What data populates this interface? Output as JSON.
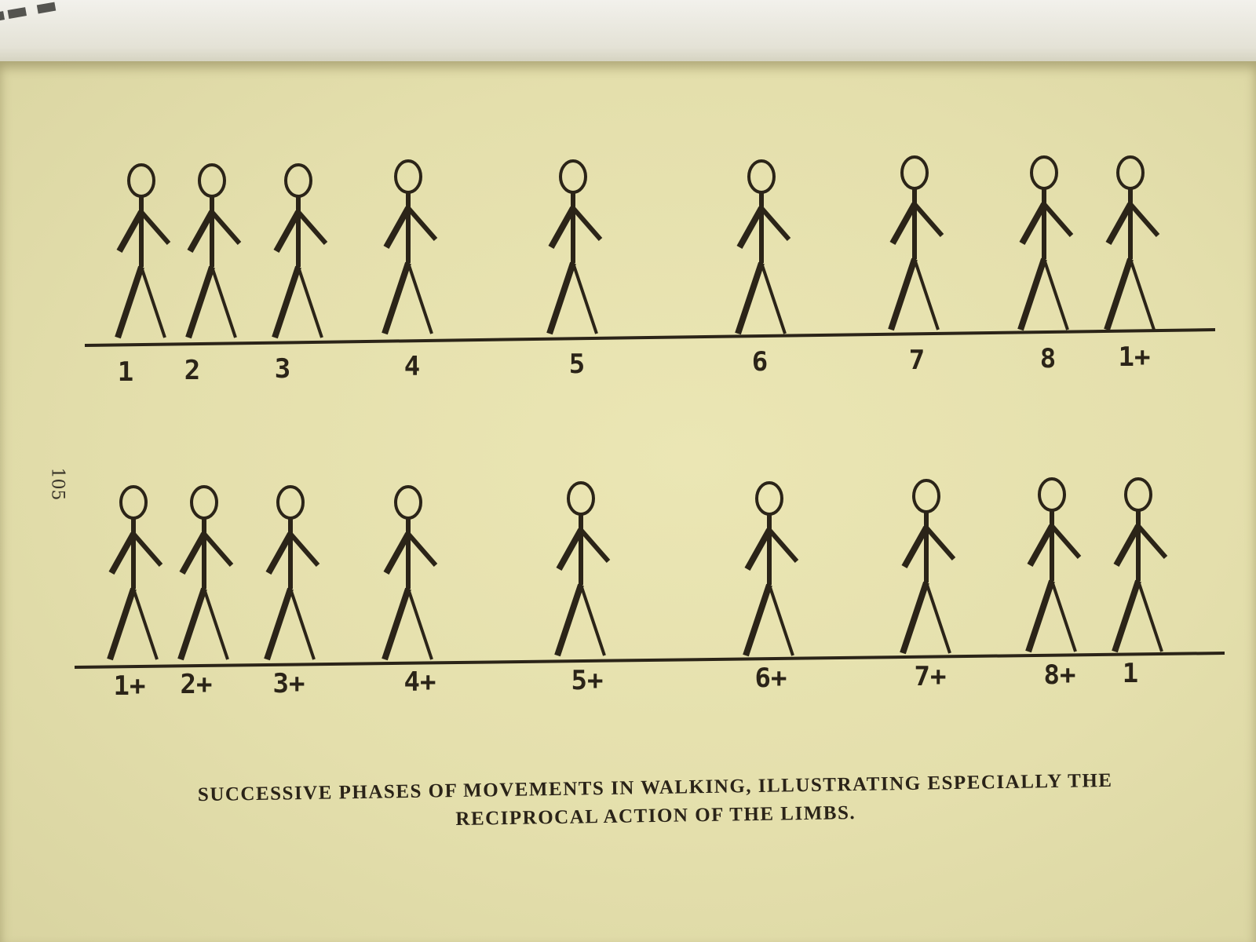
{
  "page_number": "105",
  "caption": {
    "line1": "SUCCESSIVE PHASES OF MOVEMENTS IN WALKING, ILLUSTRATING ESPECIALLY THE",
    "line2": "RECIPROCAL ACTION OF THE LIMBS."
  },
  "rows": [
    {
      "labels": [
        "1",
        "2",
        "3",
        "4",
        "5",
        "6",
        "7",
        "8",
        "1+"
      ]
    },
    {
      "labels": [
        "1+",
        "2+",
        "3+",
        "4+",
        "5+",
        "6+",
        "7+",
        "8+",
        "1"
      ]
    }
  ],
  "colors": {
    "ink": "#2b2418",
    "paper": "#e6e1ae"
  }
}
